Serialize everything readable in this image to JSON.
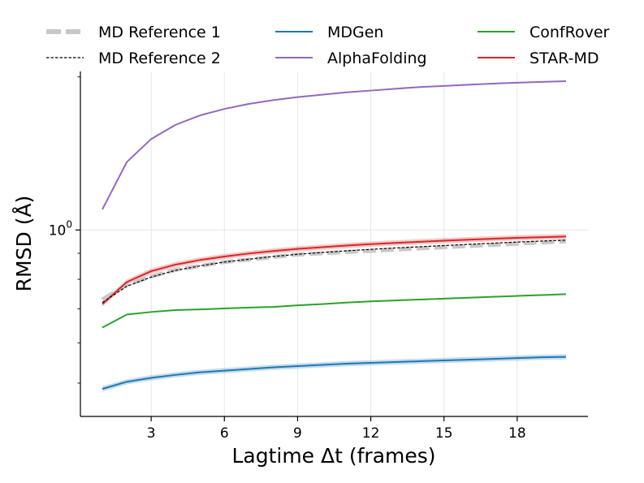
{
  "chart_data": {
    "type": "line",
    "xlabel": "Lagtime Δt (frames)",
    "ylabel": "RMSD (Å)",
    "xlim": [
      0.1,
      20.9
    ],
    "ylim_log": [
      0.43,
      2.05
    ],
    "yscale": "log",
    "xticks": [
      3,
      6,
      9,
      12,
      15,
      18
    ],
    "xtick_labels": [
      "3",
      "6",
      "9",
      "12",
      "15",
      "18"
    ],
    "ytick_major": {
      "value": 1.0,
      "label_base": "10",
      "label_exp": "0"
    },
    "grid": true,
    "x": [
      1,
      2,
      3,
      4,
      5,
      6,
      7,
      8,
      9,
      10,
      11,
      12,
      13,
      14,
      15,
      16,
      17,
      18,
      19,
      20
    ],
    "series": [
      {
        "name": "MD Reference 1",
        "color": "#c8c8c8",
        "style": "dashed-thick",
        "values": [
          0.73,
          0.78,
          0.81,
          0.835,
          0.85,
          0.865,
          0.875,
          0.885,
          0.895,
          0.9,
          0.905,
          0.91,
          0.915,
          0.92,
          0.925,
          0.93,
          0.935,
          0.94,
          0.945,
          0.95
        ]
      },
      {
        "name": "MD Reference 2",
        "color": "#000000",
        "style": "dashed-thin",
        "values": [
          0.72,
          0.775,
          0.808,
          0.833,
          0.85,
          0.865,
          0.876,
          0.887,
          0.896,
          0.903,
          0.91,
          0.916,
          0.922,
          0.927,
          0.932,
          0.937,
          0.942,
          0.947,
          0.951,
          0.955
        ]
      },
      {
        "name": "MDGen",
        "color": "#1f77b4",
        "style": "solid",
        "values": [
          0.487,
          0.503,
          0.512,
          0.519,
          0.525,
          0.529,
          0.533,
          0.537,
          0.54,
          0.543,
          0.546,
          0.548,
          0.55,
          0.552,
          0.554,
          0.556,
          0.558,
          0.56,
          0.562,
          0.563
        ]
      },
      {
        "name": "AlphaFolding",
        "color": "#9467bd",
        "style": "solid",
        "values": [
          1.098,
          1.36,
          1.51,
          1.61,
          1.68,
          1.73,
          1.77,
          1.8,
          1.825,
          1.845,
          1.865,
          1.88,
          1.895,
          1.91,
          1.92,
          1.93,
          1.94,
          1.948,
          1.955,
          1.962
        ]
      },
      {
        "name": "ConfRover",
        "color": "#2ca02c",
        "style": "solid",
        "values": [
          0.643,
          0.682,
          0.69,
          0.696,
          0.698,
          0.701,
          0.704,
          0.706,
          0.711,
          0.715,
          0.72,
          0.724,
          0.727,
          0.73,
          0.733,
          0.736,
          0.739,
          0.742,
          0.745,
          0.748
        ]
      },
      {
        "name": "STAR-MD",
        "color": "#d62728",
        "style": "solid-band",
        "values": [
          0.715,
          0.79,
          0.83,
          0.855,
          0.873,
          0.887,
          0.899,
          0.909,
          0.918,
          0.925,
          0.932,
          0.938,
          0.943,
          0.948,
          0.953,
          0.957,
          0.961,
          0.965,
          0.968,
          0.971
        ]
      }
    ]
  }
}
